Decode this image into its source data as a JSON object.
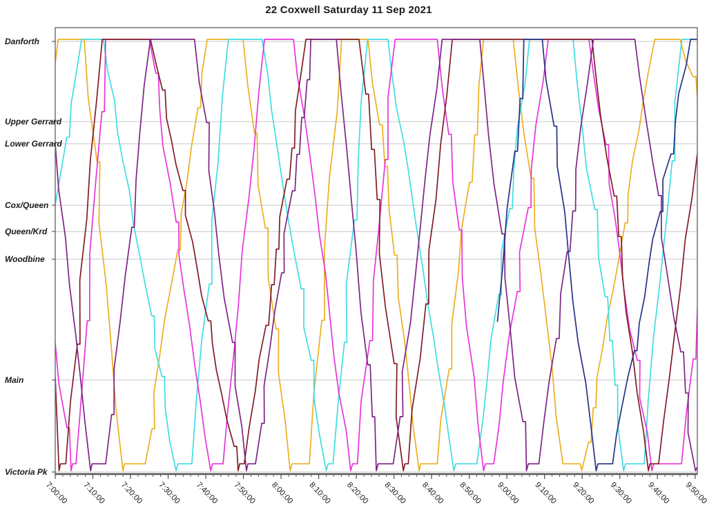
{
  "title": "22 Coxwell Saturday 11 Sep 2021",
  "chart_data": {
    "type": "line",
    "subtype": "marey-time-distance",
    "title": "22 Coxwell Saturday 11 Sep 2021",
    "xlabel": "",
    "ylabel": "",
    "grid": "horizontal-only",
    "legend": "none",
    "x_axis": {
      "time_origin": "7:00:00",
      "start_min": 0,
      "end_min": 170.6,
      "major_tick_min": 10,
      "minor_tick_min": 2,
      "tick_labels": [
        "7:00:00",
        "7:10:00",
        "7:20:00",
        "7:30:00",
        "7:40:00",
        "7:50:00",
        "8:00:00",
        "8:10:00",
        "8:20:00",
        "8:30:00",
        "8:40:00",
        "8:50:00",
        "9:00:00",
        "9:10:00",
        "9:20:00",
        "9:30:00",
        "9:40:00",
        "9:50:00"
      ]
    },
    "y_axis": {
      "description": "position along route, 0 = Victoria Pk, 1 = Danforth",
      "stations": [
        {
          "label": "Danforth",
          "pos": 1.0
        },
        {
          "label": "Upper Gerrard",
          "pos": 0.8138
        },
        {
          "label": "Lower Gerrard",
          "pos": 0.7624
        },
        {
          "label": "Cox/Queen",
          "pos": 0.6196
        },
        {
          "label": "Queen/Krd",
          "pos": 0.5586
        },
        {
          "label": "Woodbine",
          "pos": 0.4943
        },
        {
          "label": "Main",
          "pos": 0.2135
        },
        {
          "label": "Victoria Pk",
          "pos": 0.0
        }
      ]
    },
    "series": [
      {
        "name": "bus-gold",
        "color": "#ECAF21",
        "waypoints": [
          [
            0,
            0.95
          ],
          [
            0.8,
            1.005
          ],
          [
            7.7,
            1.005
          ],
          [
            18.0,
            0.003
          ],
          [
            18.4,
            0.019
          ],
          [
            23.9,
            0.019
          ],
          [
            40.4,
            1.005
          ],
          [
            49.9,
            1.005
          ],
          [
            62.4,
            0.003
          ],
          [
            62.9,
            0.019
          ],
          [
            67.5,
            0.019
          ],
          [
            76.1,
            1.005
          ],
          [
            83.1,
            1.005
          ],
          [
            96.7,
            0.003
          ],
          [
            97.1,
            0.019
          ],
          [
            101.5,
            0.019
          ],
          [
            113.8,
            1.005
          ],
          [
            121.7,
            1.005
          ],
          [
            134.9,
            0.019
          ],
          [
            139.5,
            0.019
          ],
          [
            139.9,
            0.003
          ],
          [
            159.3,
            1.005
          ],
          [
            166.0,
            1.005
          ],
          [
            170.6,
            0.87
          ]
        ]
      },
      {
        "name": "bus-cyan",
        "color": "#3FDDE2",
        "waypoints": [
          [
            0,
            0.62
          ],
          [
            7.0,
            1.005
          ],
          [
            12.8,
            1.005
          ],
          [
            32.1,
            0.003
          ],
          [
            32.6,
            0.019
          ],
          [
            36.3,
            0.019
          ],
          [
            46.0,
            1.005
          ],
          [
            55.0,
            1.005
          ],
          [
            72.0,
            0.003
          ],
          [
            72.5,
            0.019
          ],
          [
            73.8,
            0.019
          ],
          [
            83.0,
            1.005
          ],
          [
            88.4,
            1.005
          ],
          [
            105.9,
            0.003
          ],
          [
            106.4,
            0.019
          ],
          [
            112.0,
            0.019
          ],
          [
            126.0,
            1.005
          ],
          [
            137.6,
            1.005
          ],
          [
            151.0,
            0.003
          ],
          [
            151.5,
            0.019
          ],
          [
            156.5,
            0.019
          ],
          [
            166.5,
            1.005
          ],
          [
            170.6,
            1.005
          ]
        ]
      },
      {
        "name": "bus-magenta",
        "color": "#E634DC",
        "waypoints": [
          [
            0,
            0.3
          ],
          [
            4.2,
            0.003
          ],
          [
            4.6,
            0.019
          ],
          [
            5.5,
            0.019
          ],
          [
            13.4,
            1.005
          ],
          [
            25.0,
            1.005
          ],
          [
            41.3,
            0.003
          ],
          [
            41.8,
            0.019
          ],
          [
            44.6,
            0.019
          ],
          [
            55.6,
            1.005
          ],
          [
            63.3,
            1.005
          ],
          [
            78.5,
            0.003
          ],
          [
            79.0,
            0.019
          ],
          [
            80.3,
            0.019
          ],
          [
            90.3,
            1.005
          ],
          [
            101.5,
            1.005
          ],
          [
            113.8,
            0.003
          ],
          [
            114.3,
            0.019
          ],
          [
            116.5,
            0.019
          ],
          [
            131.0,
            1.005
          ],
          [
            141.8,
            1.005
          ],
          [
            158.5,
            0.003
          ],
          [
            159.0,
            0.019
          ],
          [
            166.4,
            0.019
          ],
          [
            170.6,
            0.38
          ]
        ]
      },
      {
        "name": "bus-maroon",
        "color": "#801B26",
        "waypoints": [
          [
            0,
            0.22
          ],
          [
            1.0,
            0.003
          ],
          [
            1.4,
            0.019
          ],
          [
            2.8,
            0.019
          ],
          [
            12.5,
            1.005
          ],
          [
            25.3,
            1.005
          ],
          [
            48.6,
            0.003
          ],
          [
            49.0,
            0.019
          ],
          [
            50.2,
            0.019
          ],
          [
            66.6,
            1.005
          ],
          [
            80.7,
            1.005
          ],
          [
            92.5,
            0.003
          ],
          [
            92.9,
            0.019
          ],
          [
            93.8,
            0.019
          ],
          [
            105.5,
            1.005
          ],
          [
            142.6,
            1.005
          ],
          [
            157.6,
            0.003
          ],
          [
            158.0,
            0.019
          ],
          [
            160.3,
            0.019
          ],
          [
            170.6,
            0.74
          ]
        ]
      },
      {
        "name": "bus-purple",
        "color": "#7C2384",
        "waypoints": [
          [
            0,
            0.762
          ],
          [
            9.4,
            0.003
          ],
          [
            9.8,
            0.019
          ],
          [
            13.4,
            0.019
          ],
          [
            25.3,
            1.005
          ],
          [
            37.0,
            1.005
          ],
          [
            50.8,
            0.003
          ],
          [
            51.2,
            0.019
          ],
          [
            53.2,
            0.019
          ],
          [
            67.9,
            1.005
          ],
          [
            74.7,
            1.005
          ],
          [
            85.3,
            0.003
          ],
          [
            85.8,
            0.019
          ],
          [
            89.8,
            0.019
          ],
          [
            102.8,
            1.005
          ],
          [
            112.8,
            1.005
          ],
          [
            125.2,
            0.003
          ],
          [
            125.7,
            0.019
          ],
          [
            128.5,
            0.019
          ],
          [
            143.0,
            1.005
          ],
          [
            154.0,
            1.005
          ],
          [
            170.1,
            0.003
          ],
          [
            170.6,
            0.012
          ]
        ]
      },
      {
        "name": "bus-navy",
        "color": "#273183",
        "waypoints": [
          [
            117.5,
            0.35
          ],
          [
            124.5,
            1.005
          ],
          [
            129.4,
            1.005
          ],
          [
            143.7,
            0.003
          ],
          [
            144.2,
            0.019
          ],
          [
            148.1,
            0.019
          ],
          [
            168.8,
            1.005
          ],
          [
            170.6,
            1.005
          ]
        ]
      }
    ],
    "colors": {
      "grid": "#c6c6c6",
      "frame": "#6a6a6a",
      "axis": "#555555",
      "text": "#1a1a1a"
    }
  }
}
